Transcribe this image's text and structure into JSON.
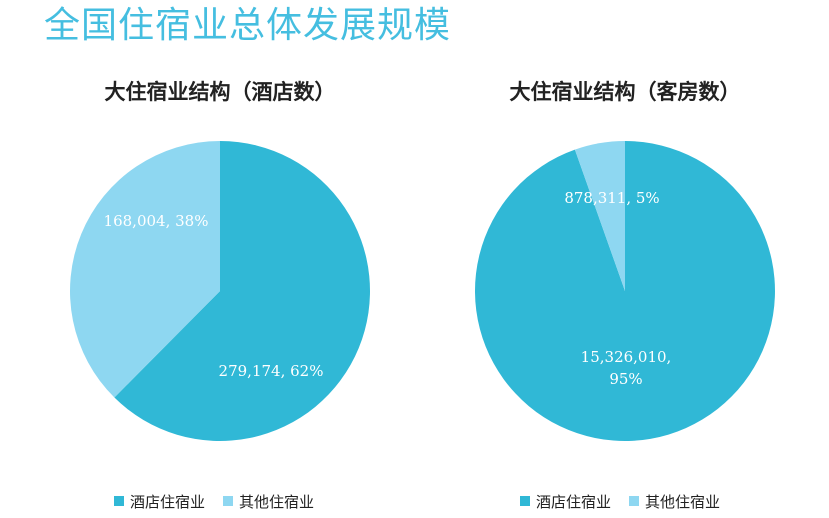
{
  "page": {
    "title": "全国住宿业总体发展规模",
    "title_color": "#45BEE0"
  },
  "chart_data": [
    {
      "type": "pie",
      "title": "大住宿业结构（酒店数）",
      "slices": [
        {
          "name": "酒店住宿业",
          "value": 279174,
          "percent": 62,
          "label": "279,174, 62%",
          "color": "#30B8D6"
        },
        {
          "name": "其他住宿业",
          "value": 168004,
          "percent": 38,
          "label": "168,004, 38%",
          "color": "#8ED7F1"
        }
      ],
      "legend": [
        "酒店住宿业",
        "其他住宿业"
      ],
      "legend_position": "bottom"
    },
    {
      "type": "pie",
      "title": "大住宿业结构（客房数）",
      "slices": [
        {
          "name": "酒店住宿业",
          "value": 15326010,
          "percent": 95,
          "label": "15,326,010,\n95%",
          "color": "#30B8D6"
        },
        {
          "name": "其他住宿业",
          "value": 878311,
          "percent": 5,
          "label": "878,311, 5%",
          "color": "#8ED7F1"
        }
      ],
      "legend": [
        "酒店住宿业",
        "其他住宿业"
      ],
      "legend_position": "bottom"
    }
  ]
}
